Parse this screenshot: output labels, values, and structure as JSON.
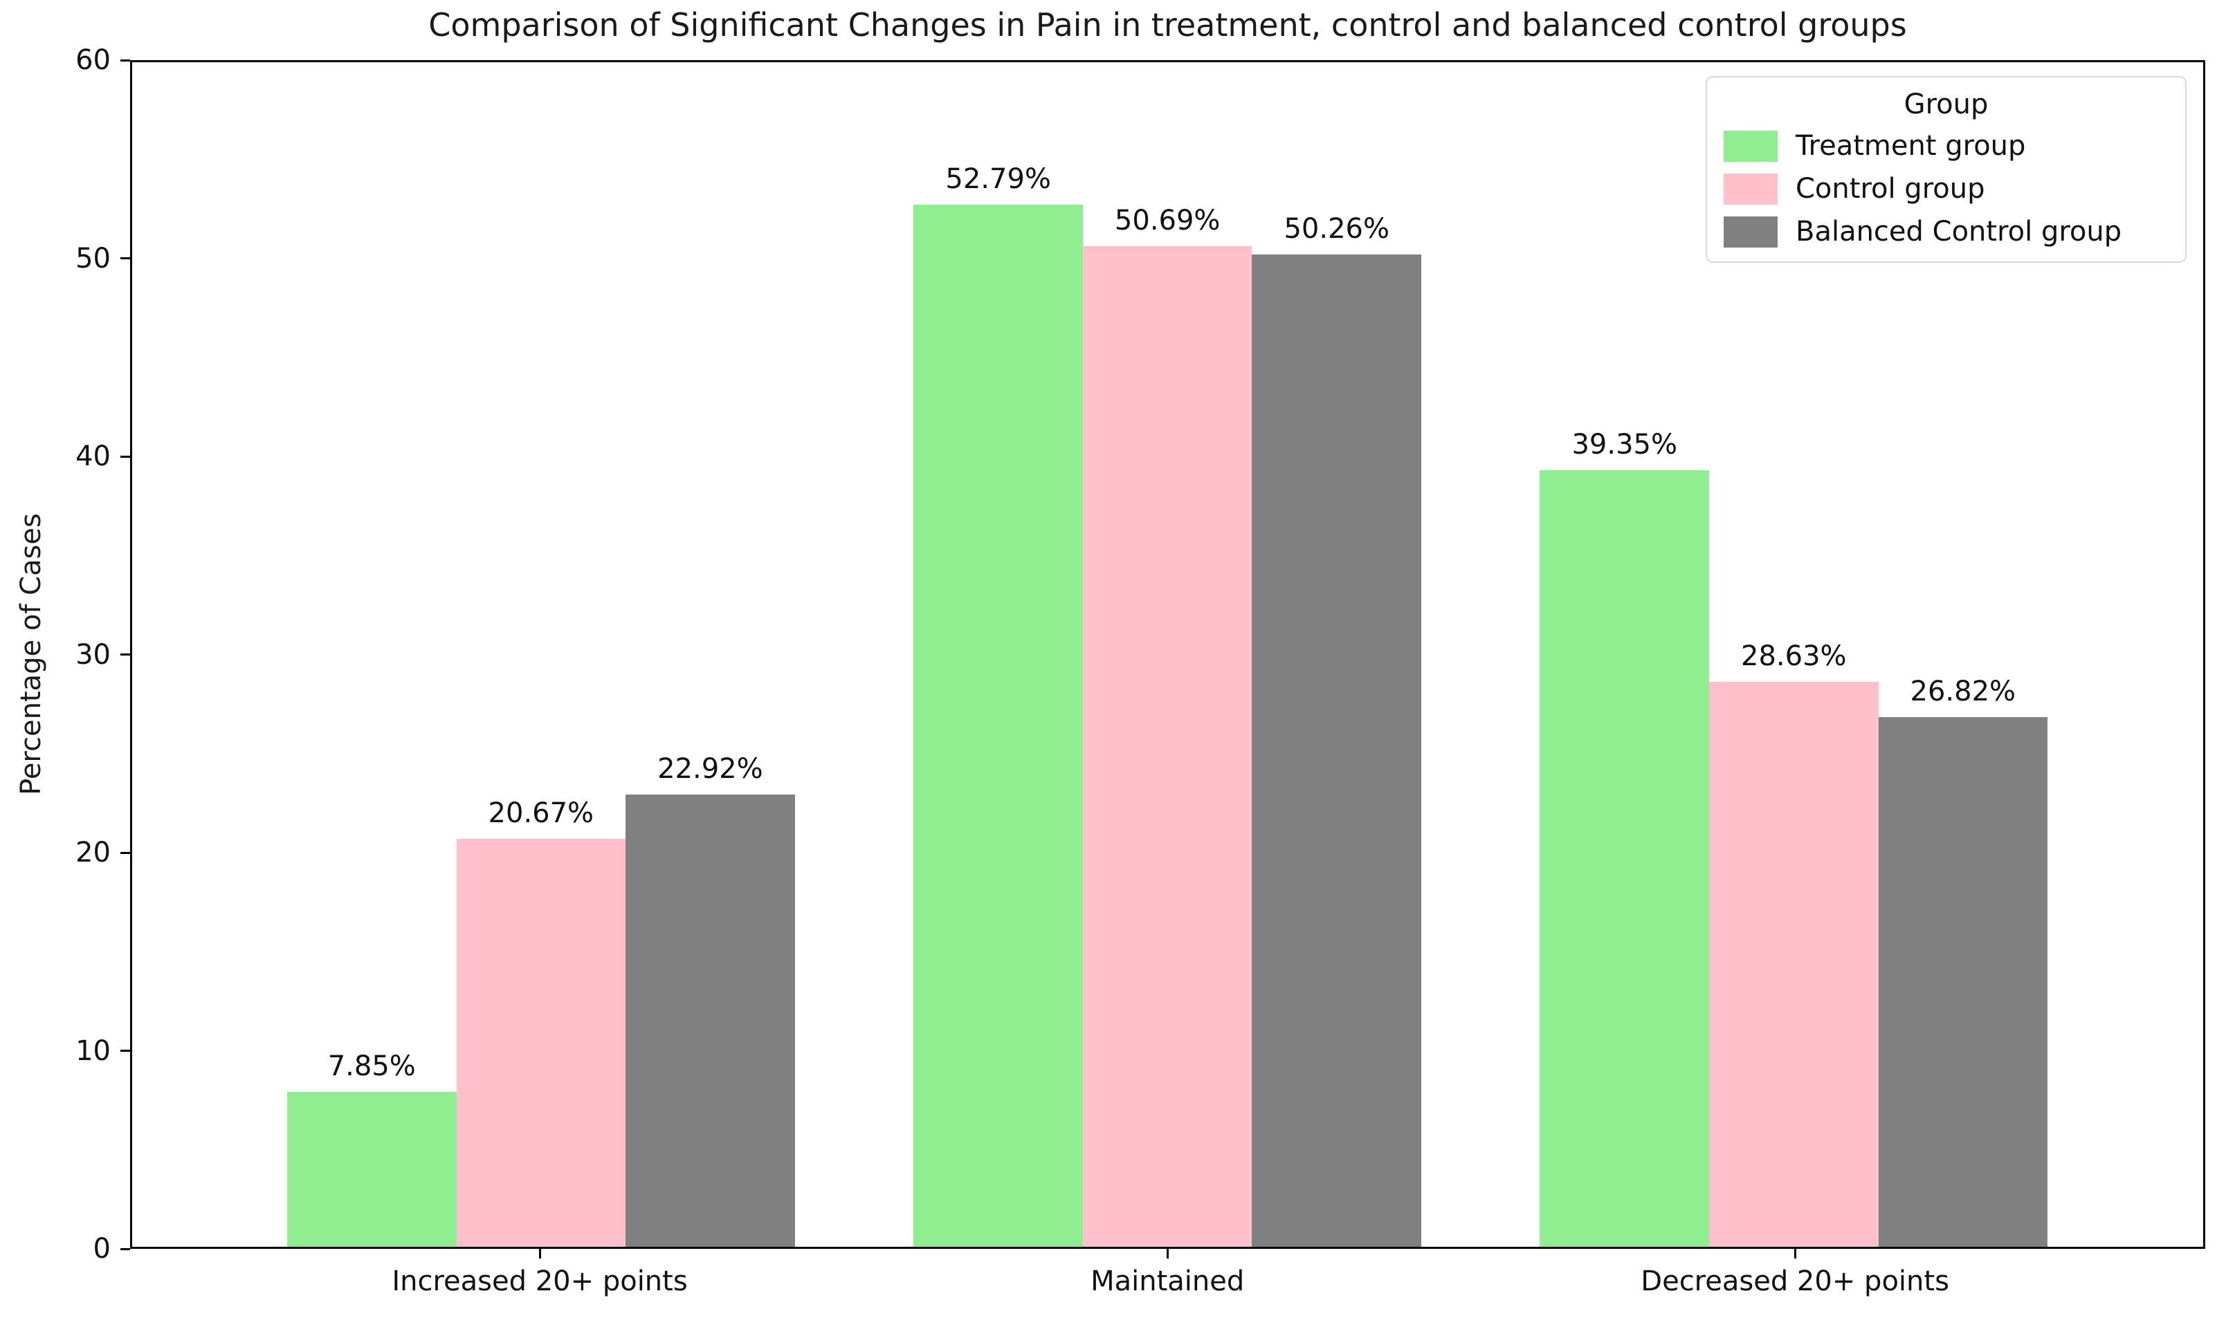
{
  "figure": {
    "background": "#ffffff",
    "text_color": "#1a1a1a"
  },
  "chart_data": {
    "type": "bar",
    "title": "Comparison of Significant Changes in Pain in treatment, control and balanced control groups",
    "xlabel": "",
    "ylabel": "Percentage of Cases",
    "categories": [
      "Increased 20+ points",
      "Maintained",
      "Decreased 20+ points"
    ],
    "series": [
      {
        "name": "Treatment group",
        "color": "#90ee90",
        "values": [
          7.85,
          52.79,
          39.35
        ]
      },
      {
        "name": "Control group",
        "color": "#ffc0cb",
        "values": [
          20.67,
          50.69,
          28.63
        ]
      },
      {
        "name": "Balanced Control group",
        "color": "#808080",
        "values": [
          22.92,
          50.26,
          26.82
        ]
      }
    ],
    "bar_labels": [
      [
        "7.85%",
        "52.79%",
        "39.35%"
      ],
      [
        "20.67%",
        "50.69%",
        "28.63%"
      ],
      [
        "22.92%",
        "50.26%",
        "26.82%"
      ]
    ],
    "ylim": [
      0,
      60
    ],
    "yticks": [
      0,
      10,
      20,
      30,
      40,
      50,
      60
    ],
    "grid": false,
    "legend": {
      "title": "Group",
      "position": "upper right"
    },
    "bar_label_format": "{value}%"
  }
}
